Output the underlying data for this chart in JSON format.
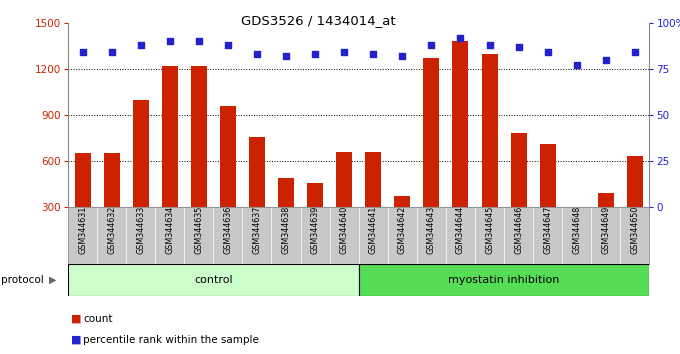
{
  "title": "GDS3526 / 1434014_at",
  "categories": [
    "GSM344631",
    "GSM344632",
    "GSM344633",
    "GSM344634",
    "GSM344635",
    "GSM344636",
    "GSM344637",
    "GSM344638",
    "GSM344639",
    "GSM344640",
    "GSM344641",
    "GSM344642",
    "GSM344643",
    "GSM344644",
    "GSM344645",
    "GSM344646",
    "GSM344647",
    "GSM344648",
    "GSM344649",
    "GSM344650"
  ],
  "bar_values": [
    650,
    650,
    1000,
    1220,
    1220,
    960,
    760,
    490,
    460,
    660,
    660,
    370,
    1270,
    1380,
    1300,
    780,
    710,
    270,
    390,
    630
  ],
  "bar_color": "#cc2200",
  "dot_values": [
    84,
    84,
    88,
    90,
    90,
    88,
    83,
    82,
    83,
    84,
    83,
    82,
    88,
    92,
    88,
    87,
    84,
    77,
    80,
    84
  ],
  "dot_color": "#2222cc",
  "ylim_left": [
    300,
    1500
  ],
  "ylim_right": [
    0,
    100
  ],
  "yticks_left": [
    300,
    600,
    900,
    1200,
    1500
  ],
  "yticks_right": [
    0,
    25,
    50,
    75,
    100
  ],
  "grid_values": [
    600,
    900,
    1200
  ],
  "control_count": 10,
  "myostatin_count": 10,
  "label_count": "count",
  "label_percentile": "percentile rank within the sample",
  "protocol_label": "protocol",
  "group1_label": "control",
  "group2_label": "myostatin inhibition",
  "background_color": "#ffffff",
  "tick_area_color": "#c8c8c8",
  "group1_color": "#ccffcc",
  "group2_color": "#55dd55"
}
